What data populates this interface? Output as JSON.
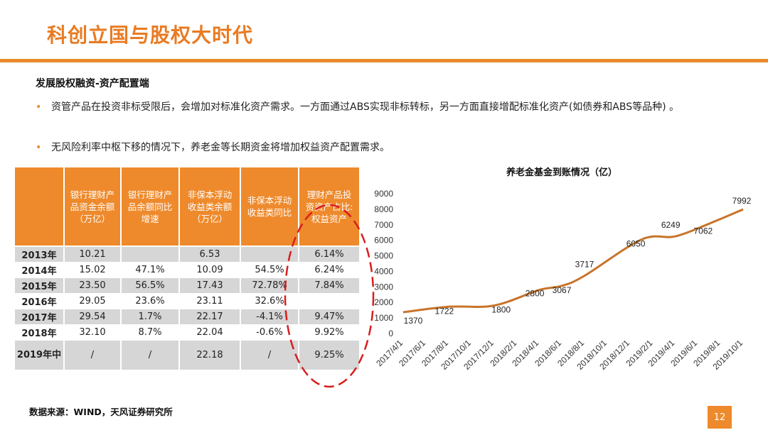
{
  "slide": {
    "title": "科创立国与股权大时代",
    "section_heading": "发展股权融资-资产配置端",
    "bullets": [
      "资管产品在投资非标受限后，会增加对标准化资产需求。一方面通过ABS实现非标转标，另一方面直接增配标准化资产(如债券和ABS等品种) 。",
      "无风险利率中枢下移的情况下，养老金等长期资金将增加权益资产配置需求。"
    ],
    "bullet_marker": "•",
    "footnote": "数据来源：WIND，天风证券研究所",
    "page_number": "12",
    "accent_color": "#e98a2c"
  },
  "table": {
    "headers": [
      "",
      "银行理财产品资金余额（万亿）",
      "银行理财产品余额同比增速",
      "非保本浮动收益类余额（万亿）",
      "非保本浮动收益类同比",
      "理财产品投资资产占比:权益资产"
    ],
    "rows": [
      [
        "2013年",
        "10.21",
        "",
        "6.53",
        "",
        "6.14%"
      ],
      [
        "2014年",
        "15.02",
        "47.1%",
        "10.09",
        "54.5%",
        "6.24%"
      ],
      [
        "2015年",
        "23.50",
        "56.5%",
        "17.43",
        "72.78%",
        "7.84%"
      ],
      [
        "2016年",
        "29.05",
        "23.6%",
        "23.11",
        "32.6%",
        ""
      ],
      [
        "2017年",
        "29.54",
        "1.7%",
        "22.17",
        "-4.1%",
        "9.47%"
      ],
      [
        "2018年",
        "32.10",
        "8.7%",
        "22.04",
        "-0.6%",
        "9.92%"
      ],
      [
        "2019年中",
        "/",
        "/",
        "22.18",
        "/",
        "9.25%"
      ]
    ],
    "highlight_color": "#d81e1e"
  },
  "chart_data": {
    "type": "line",
    "title": "养老金基金到账情况（亿）",
    "xlabel": "",
    "ylabel": "",
    "ylim": [
      0,
      9000
    ],
    "yticks": [
      0,
      1000,
      2000,
      3000,
      4000,
      5000,
      6000,
      7000,
      8000,
      9000
    ],
    "x_tick_labels": [
      "2017/4/1",
      "2017/6/1",
      "2017/8/1",
      "2017/10/1",
      "2017/12/1",
      "2018/2/1",
      "2018/4/1",
      "2018/6/1",
      "2018/8/1",
      "2018/10/1",
      "2018/12/1",
      "2019/2/1",
      "2019/4/1",
      "2019/6/1",
      "2019/8/1",
      "2019/10/1"
    ],
    "points": [
      {
        "x": "2017/4/1",
        "y": 1370,
        "label": "1370"
      },
      {
        "x": "2017/8/1",
        "y": 1722,
        "label": "1722"
      },
      {
        "x": "2017/12/1",
        "y": 1800,
        "label": "1800"
      },
      {
        "x": "2018/4/1",
        "y": 2800,
        "label": "2800"
      },
      {
        "x": "2018/6/1",
        "y": 3067,
        "label": "3067"
      },
      {
        "x": "2018/8/1",
        "y": 3717,
        "label": "3717"
      },
      {
        "x": "2019/1/1",
        "y": 6050,
        "label": "6050"
      },
      {
        "x": "2019/4/1",
        "y": 6249,
        "label": "6249"
      },
      {
        "x": "2019/7/1",
        "y": 7062,
        "label": "7062"
      },
      {
        "x": "2019/10/1",
        "y": 7992,
        "label": "7992"
      }
    ],
    "grid": false,
    "legend": "none",
    "line_color": "#c8742a"
  }
}
